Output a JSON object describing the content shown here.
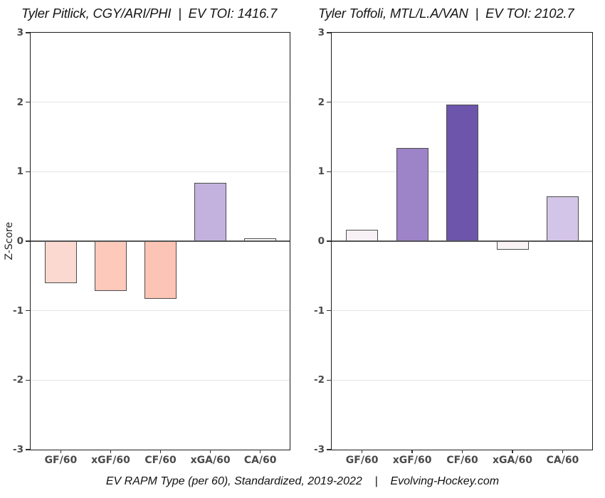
{
  "page": {
    "ylabel": "Z-Score",
    "caption": "EV RAPM Type (per 60), Standardized, 2019-2022    |    Evolving-Hockey.com",
    "source": "Evolving-Hockey.com"
  },
  "colors": {
    "background": "#ffffff",
    "box_border": "#1c1c1c",
    "zero_line": "#555555",
    "gridline": "#e4e4e4",
    "bar_border": "#4d4d4d",
    "tick_label": "#4a4a4a",
    "negative_scale": [
      "#fcd9d0",
      "#fcc9bb",
      "#fcc4b4"
    ],
    "positive_scale": [
      "#f7f0f5",
      "#d3c5e7",
      "#c3b2dd",
      "#9d83c8",
      "#6c55ab"
    ]
  },
  "chart_data": [
    {
      "type": "bar",
      "title": "Tyler Pitlick, CGY/ARI/PHI  |  EV TOI: 1416.7",
      "player": "Tyler Pitlick",
      "teams": "CGY/ARI/PHI",
      "ev_toi": 1416.7,
      "categories": [
        "GF/60",
        "xGF/60",
        "CF/60",
        "xGA/60",
        "CA/60"
      ],
      "values": [
        -0.6,
        -0.72,
        -0.83,
        0.84,
        0.04
      ],
      "bar_colors": [
        "#fcd9d0",
        "#fcc9bb",
        "#fcc4b4",
        "#c3b2dd",
        "#fdfcfd"
      ],
      "bar_dotted": [
        false,
        false,
        false,
        false,
        false
      ],
      "ylabel": "Z-Score",
      "ylim": [
        -3,
        3
      ],
      "yticks": [
        3,
        2,
        1,
        0,
        -1,
        -2,
        -3
      ],
      "gridlines": [
        2,
        1,
        -1,
        -2
      ],
      "grid": true,
      "legend": "none"
    },
    {
      "type": "bar",
      "title": "Tyler Toffoli, MTL/L.A/VAN  |  EV TOI: 2102.7",
      "player": "Tyler Toffoli",
      "teams": "MTL/L.A/VAN",
      "ev_toi": 2102.7,
      "categories": [
        "GF/60",
        "xGF/60",
        "CF/60",
        "xGA/60",
        "CA/60"
      ],
      "values": [
        0.16,
        1.34,
        1.97,
        -0.12,
        0.65
      ],
      "bar_colors": [
        "#f7f0f5",
        "#9d83c8",
        "#6c55ab",
        "#f9f3f6",
        "#d3c5e7"
      ],
      "bar_dotted": [
        true,
        false,
        false,
        true,
        false
      ],
      "ylabel": "Z-Score",
      "ylim": [
        -3,
        3
      ],
      "yticks": [
        3,
        2,
        1,
        0,
        -1,
        -2,
        -3
      ],
      "gridlines": [
        2,
        1,
        -1,
        -2
      ],
      "grid": true,
      "legend": "none"
    }
  ]
}
